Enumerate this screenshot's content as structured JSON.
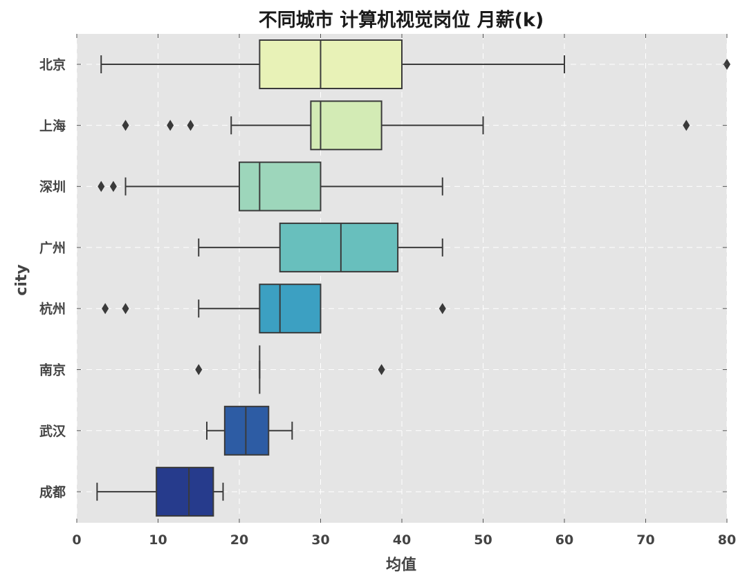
{
  "chart_data": {
    "type": "boxplot",
    "orientation": "horizontal",
    "title": "不同城市 计算机视觉岗位 月薪(k)",
    "xlabel": "均值",
    "ylabel": "city",
    "xlim": [
      0,
      80
    ],
    "xticks": [
      0,
      10,
      20,
      30,
      40,
      50,
      60,
      70,
      80
    ],
    "grid": true,
    "background": "#e5e5e5",
    "grid_color": "#ffffff",
    "line_color": "#3a3a3a",
    "categories": [
      "北京",
      "上海",
      "深圳",
      "广州",
      "杭州",
      "南京",
      "武汉",
      "成都"
    ],
    "boxes": [
      {
        "city": "北京",
        "whisker_low": 3,
        "q1": 22.5,
        "median": 30,
        "q3": 40,
        "whisker_high": 60,
        "outliers": [
          80
        ],
        "color": "#e8f2b7"
      },
      {
        "city": "上海",
        "whisker_low": 19,
        "q1": 28.8,
        "median": 30,
        "q3": 37.5,
        "whisker_high": 50,
        "outliers": [
          6,
          11.5,
          14,
          75
        ],
        "color": "#d3ebb5"
      },
      {
        "city": "深圳",
        "whisker_low": 6,
        "q1": 20,
        "median": 22.5,
        "q3": 30,
        "whisker_high": 45,
        "outliers": [
          3,
          4.5
        ],
        "color": "#9dd6bb"
      },
      {
        "city": "广州",
        "whisker_low": 15,
        "q1": 25,
        "median": 32.5,
        "q3": 39.5,
        "whisker_high": 45,
        "outliers": [],
        "color": "#68bfbd"
      },
      {
        "city": "杭州",
        "whisker_low": 15,
        "q1": 22.5,
        "median": 25,
        "q3": 30,
        "whisker_high": 30,
        "outliers": [
          3.5,
          6,
          45
        ],
        "color": "#3ca0c2"
      },
      {
        "city": "南京",
        "whisker_low": 22.5,
        "q1": 22.5,
        "median": 22.5,
        "q3": 22.5,
        "whisker_high": 22.5,
        "outliers": [
          15,
          37.5
        ],
        "color": "#2e7cb8"
      },
      {
        "city": "武汉",
        "whisker_low": 16,
        "q1": 18.2,
        "median": 20.8,
        "q3": 23.6,
        "whisker_high": 26.5,
        "outliers": [],
        "color": "#2d5ca4"
      },
      {
        "city": "成都",
        "whisker_low": 2.5,
        "q1": 9.8,
        "median": 13.8,
        "q3": 16.8,
        "whisker_high": 18,
        "outliers": [],
        "color": "#263b8c"
      }
    ]
  }
}
